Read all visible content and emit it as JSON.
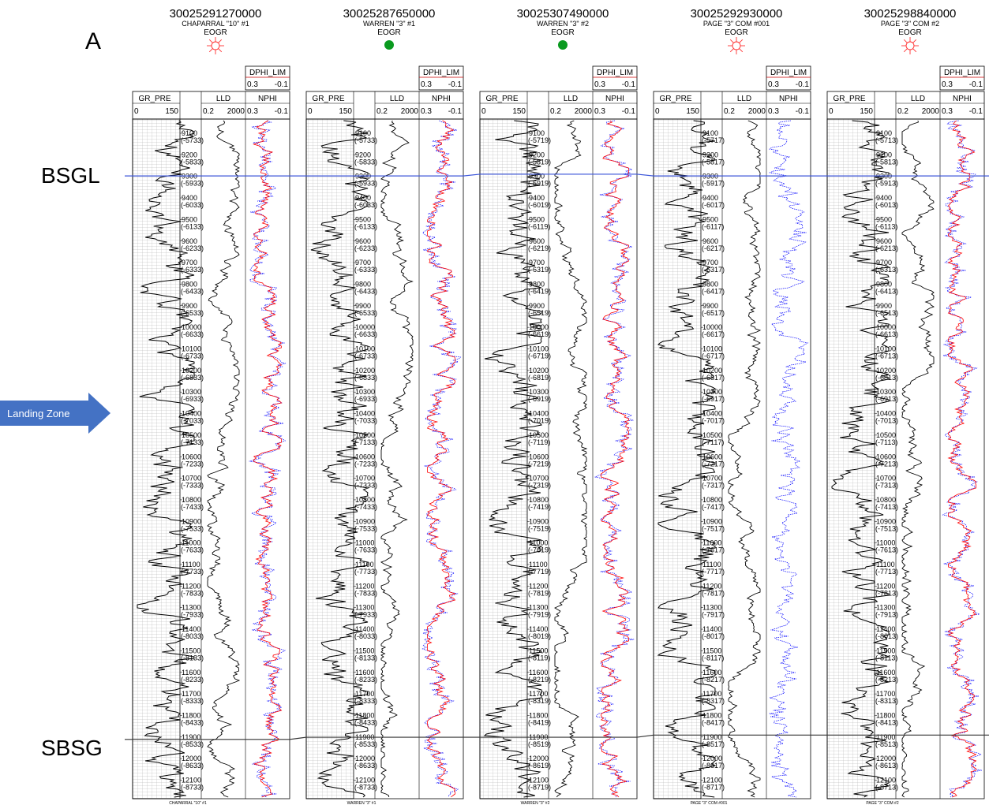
{
  "section_label": "A",
  "markers": [
    {
      "name": "BSGL",
      "color": "#3b55d9"
    },
    {
      "name": "SBSG",
      "color": "#333333"
    }
  ],
  "landing_zone": {
    "label": "Landing Zone",
    "color": "#4472c4",
    "text_color": "#ffffff"
  },
  "track_headers": {
    "gr": {
      "name": "GR_PRE",
      "min": "0",
      "max": "150"
    },
    "lld": {
      "name": "LLD",
      "min": "0.2",
      "max": "2000"
    },
    "nphi": {
      "name": "NPHI",
      "min": "0.3",
      "max": "-0.1"
    },
    "dphi": {
      "name": "DPHI_LIM",
      "min": "0.3",
      "max": "-0.1"
    }
  },
  "curve_colors": {
    "gr": "#000000",
    "lld": "#000000",
    "nphi": "#ff0000",
    "dphi": "#0000ff"
  },
  "depths": [
    "9100",
    "9200",
    "9300",
    "9400",
    "9500",
    "9600",
    "9700",
    "9800",
    "9900",
    "10000",
    "10100",
    "10200",
    "10300",
    "10400",
    "10500",
    "10600",
    "10700",
    "10800",
    "10900",
    "11000",
    "11100",
    "11200",
    "11300",
    "11400",
    "11500",
    "11600",
    "11700",
    "11800",
    "11900",
    "12000",
    "12100"
  ],
  "wells": [
    {
      "api": "30025291270000",
      "name": "CHAPARRAL \"10\" #1",
      "operator": "EOGR",
      "symbol": "gas-well-icon",
      "subsea": [
        "(-5733)",
        "(-5833)",
        "(-5933)",
        "(-6033)",
        "(-6133)",
        "(-6233)",
        "(-6333)",
        "(-6433)",
        "(-6533)",
        "(-6633)",
        "(-6733)",
        "(-6833)",
        "(-6933)",
        "(-7033)",
        "(-7133)",
        "(-7233)",
        "(-7333)",
        "(-7433)",
        "(-7533)",
        "(-7633)",
        "(-7733)",
        "(-7833)",
        "(-7933)",
        "(-8033)",
        "(-8133)",
        "(-8233)",
        "(-8333)",
        "(-8433)",
        "(-8533)",
        "(-8633)",
        "(-8733)"
      ]
    },
    {
      "api": "30025287650000",
      "name": "WARREN \"3\" #1",
      "operator": "EOGR",
      "symbol": "oil-well-icon",
      "subsea": [
        "(-5733)",
        "(-5833)",
        "(-5933)",
        "(-6033)",
        "(-6133)",
        "(-6233)",
        "(-6333)",
        "(-6433)",
        "(-6533)",
        "(-6633)",
        "(-6733)",
        "(-6833)",
        "(-6933)",
        "(-7033)",
        "(-7133)",
        "(-7233)",
        "(-7333)",
        "(-7433)",
        "(-7533)",
        "(-7633)",
        "(-7733)",
        "(-7833)",
        "(-7933)",
        "(-8033)",
        "(-8133)",
        "(-8233)",
        "(-8333)",
        "(-8433)",
        "(-8533)",
        "(-8633)",
        "(-8733)"
      ]
    },
    {
      "api": "30025307490000",
      "name": "WARREN \"3\" #2",
      "operator": "EOGR",
      "symbol": "oil-well-icon",
      "subsea": [
        "(-5719)",
        "(-5819)",
        "(-5919)",
        "(-6019)",
        "(-6119)",
        "(-6219)",
        "(-6319)",
        "(-6419)",
        "(-6519)",
        "(-6619)",
        "(-6719)",
        "(-6819)",
        "(-6919)",
        "(-7019)",
        "(-7119)",
        "(-7219)",
        "(-7319)",
        "(-7419)",
        "(-7519)",
        "(-7619)",
        "(-7719)",
        "(-7819)",
        "(-7919)",
        "(-8019)",
        "(-8119)",
        "(-8219)",
        "(-8319)",
        "(-8419)",
        "(-8519)",
        "(-8619)",
        "(-8719)"
      ]
    },
    {
      "api": "30025292930000",
      "name": "PAGE \"3\" COM #001",
      "operator": "EOGR",
      "symbol": "gas-well-icon",
      "subsea": [
        "(-5717)",
        "(-5817)",
        "(-5917)",
        "(-6017)",
        "(-6117)",
        "(-6217)",
        "(-6317)",
        "(-6417)",
        "(-6517)",
        "(-6617)",
        "(-6717)",
        "(-6817)",
        "(-6917)",
        "(-7017)",
        "(-7117)",
        "(-7217)",
        "(-7317)",
        "(-7417)",
        "(-7517)",
        "(-7617)",
        "(-7717)",
        "(-7817)",
        "(-7917)",
        "(-8017)",
        "(-8117)",
        "(-8217)",
        "(-8317)",
        "(-8417)",
        "(-8517)",
        "(-8617)",
        "(-8717)"
      ]
    },
    {
      "api": "30025298840000",
      "name": "PAGE \"3\" COM #2",
      "operator": "EOGR",
      "symbol": "gas-well-icon",
      "subsea": [
        "(-5713)",
        "(-5813)",
        "(-5913)",
        "(-6013)",
        "(-6113)",
        "(-6213)",
        "(-6313)",
        "(-6413)",
        "(-6513)",
        "(-6613)",
        "(-6713)",
        "(-6813)",
        "(-6913)",
        "(-7013)",
        "(-7113)",
        "(-7213)",
        "(-7313)",
        "(-7413)",
        "(-7513)",
        "(-7613)",
        "(-7713)",
        "(-7813)",
        "(-7913)",
        "(-8013)",
        "(-8113)",
        "(-8213)",
        "(-8313)",
        "(-8413)",
        "(-8513)",
        "(-8613)",
        "(-8713)"
      ]
    }
  ]
}
